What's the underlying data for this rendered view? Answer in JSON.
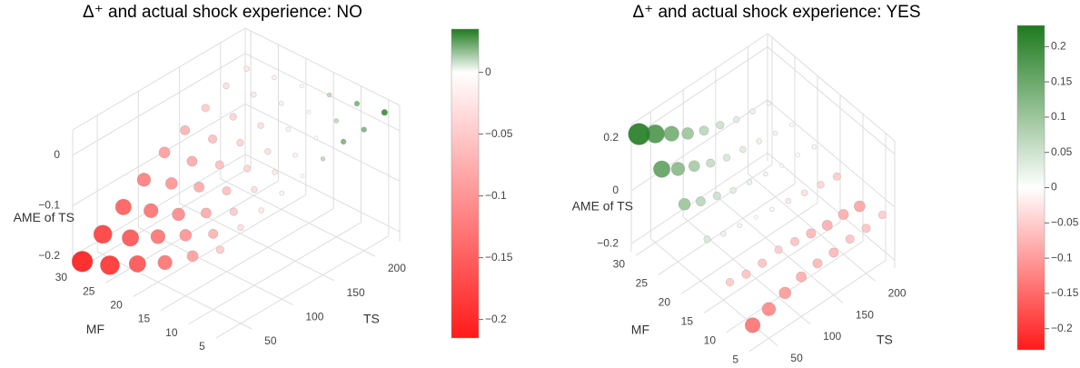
{
  "chart_data": [
    {
      "type": "scatter3d",
      "title": "Δ⁺ and actual shock experience: NO",
      "xlabel": "TS",
      "ylabel": "MF",
      "zlabel": "AME of TS",
      "x": [
        25,
        50,
        75,
        100,
        125,
        150,
        175,
        200,
        225,
        25,
        50,
        75,
        100,
        125,
        150,
        175,
        200,
        225,
        25,
        50,
        75,
        100,
        125,
        150,
        175,
        200,
        225,
        25,
        50,
        75,
        100,
        125,
        150,
        175,
        200,
        225,
        25,
        50,
        75,
        100,
        125,
        150,
        175,
        200,
        225,
        25,
        50,
        75,
        100,
        125,
        150,
        175,
        200,
        225
      ],
      "y": [
        30,
        30,
        30,
        30,
        30,
        30,
        30,
        30,
        30,
        25,
        25,
        25,
        25,
        25,
        25,
        25,
        25,
        25,
        20,
        20,
        20,
        20,
        20,
        20,
        20,
        20,
        20,
        15,
        15,
        15,
        15,
        15,
        15,
        15,
        15,
        15,
        10,
        10,
        10,
        10,
        10,
        10,
        10,
        10,
        10,
        5,
        5,
        5,
        5,
        5,
        5,
        5,
        5,
        5
      ],
      "z": [
        -0.21,
        -0.18,
        -0.15,
        -0.12,
        -0.09,
        -0.07,
        -0.05,
        -0.03,
        -0.02,
        -0.19,
        -0.16,
        -0.13,
        -0.1,
        -0.08,
        -0.06,
        -0.04,
        -0.02,
        -0.01,
        -0.16,
        -0.13,
        -0.11,
        -0.08,
        -0.06,
        -0.04,
        -0.03,
        -0.01,
        0,
        -0.13,
        -0.1,
        -0.08,
        -0.06,
        -0.04,
        -0.03,
        -0.01,
        0,
        0.01,
        -0.09,
        -0.07,
        -0.05,
        -0.03,
        -0.02,
        -0.01,
        0,
        0.01,
        0.02,
        -0.05,
        -0.03,
        -0.02,
        -0.01,
        0,
        0.01,
        0.02,
        0.02,
        0.03
      ],
      "xlim": [
        20,
        230
      ],
      "ylim": [
        3,
        31
      ],
      "zlim": [
        -0.22,
        0.05
      ],
      "xticks": [
        50,
        100,
        150,
        200
      ],
      "yticks": [
        5,
        10,
        15,
        20,
        25,
        30
      ],
      "zticks": [
        {
          "value": -0.2,
          "label": "−0.2"
        },
        {
          "value": -0.1,
          "label": "−0.1"
        },
        0
      ],
      "clim": [
        -0.215,
        0.035
      ],
      "cticks": [
        {
          "value": -0.2,
          "label": "−0.2"
        },
        {
          "value": -0.15,
          "label": "−0.15"
        },
        {
          "value": -0.1,
          "label": "−0.1"
        },
        {
          "value": -0.05,
          "label": "−0.05"
        },
        0
      ],
      "colors": {
        "negative": "#ff1a1a",
        "zero": "#ffffff",
        "positive": "#1e7b1e"
      }
    },
    {
      "type": "scatter3d",
      "title": "Δ⁺ and actual shock experience: YES",
      "xlabel": "TS",
      "ylabel": "MF",
      "zlabel": "AME of TS",
      "x": [
        25,
        50,
        75,
        100,
        125,
        150,
        175,
        200,
        225,
        25,
        50,
        75,
        100,
        125,
        150,
        175,
        200,
        225,
        25,
        50,
        75,
        100,
        125,
        150,
        175,
        200,
        225,
        25,
        50,
        75,
        100,
        125,
        150,
        175,
        200,
        225,
        25,
        50,
        75,
        100,
        125,
        150,
        175,
        200,
        225,
        25,
        50,
        75,
        100,
        125,
        150,
        175,
        200,
        225
      ],
      "y": [
        30,
        30,
        30,
        30,
        30,
        30,
        30,
        30,
        30,
        25,
        25,
        25,
        25,
        25,
        25,
        25,
        25,
        25,
        20,
        20,
        20,
        20,
        20,
        20,
        20,
        20,
        20,
        15,
        15,
        15,
        15,
        15,
        15,
        15,
        15,
        15,
        10,
        10,
        10,
        10,
        10,
        10,
        10,
        10,
        10,
        5,
        5,
        5,
        5,
        5,
        5,
        5,
        5,
        5
      ],
      "z": [
        0.22,
        0.18,
        0.14,
        0.1,
        0.07,
        0.05,
        0.03,
        0.02,
        0.01,
        0.16,
        0.12,
        0.09,
        0.06,
        0.04,
        0.03,
        0.02,
        0.01,
        0,
        0.1,
        0.07,
        0.05,
        0.03,
        0.02,
        0.01,
        0,
        0,
        -0.01,
        0.04,
        0.02,
        0.01,
        0,
        -0.01,
        -0.02,
        -0.03,
        -0.04,
        -0.05,
        -0.05,
        -0.06,
        -0.06,
        -0.05,
        -0.06,
        -0.07,
        -0.08,
        -0.08,
        -0.09,
        -0.14,
        -0.12,
        -0.1,
        -0.08,
        -0.07,
        -0.07,
        -0.06,
        -0.06,
        -0.05
      ],
      "xlim": [
        20,
        230
      ],
      "ylim": [
        3,
        31
      ],
      "zlim": [
        -0.23,
        0.25
      ],
      "xticks": [
        50,
        100,
        150,
        200
      ],
      "yticks": [
        5,
        10,
        15,
        20,
        25,
        30
      ],
      "zticks": [
        {
          "value": -0.2,
          "label": "−0.2"
        },
        0,
        0.2
      ],
      "clim": [
        -0.23,
        0.23
      ],
      "cticks": [
        {
          "value": -0.2,
          "label": "−0.2"
        },
        {
          "value": -0.15,
          "label": "−0.15"
        },
        {
          "value": -0.1,
          "label": "−0.1"
        },
        {
          "value": -0.05,
          "label": "−0.05"
        },
        0,
        0.05,
        0.1,
        0.15,
        0.2
      ],
      "colors": {
        "negative": "#ff1a1a",
        "zero": "#ffffff",
        "positive": "#1e7b1e"
      }
    }
  ]
}
